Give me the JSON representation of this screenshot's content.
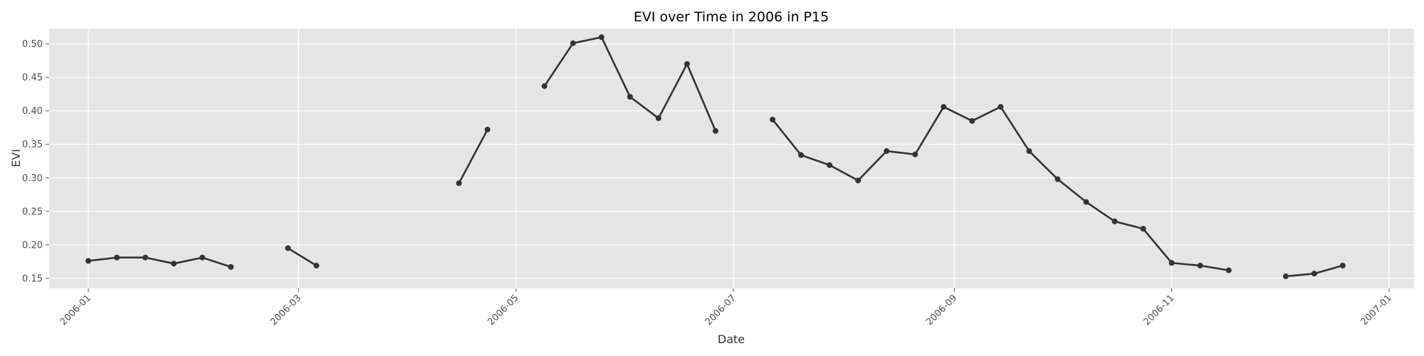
{
  "chart_data": {
    "type": "line",
    "title": "EVI over Time in 2006 in P15",
    "xlabel": "Date",
    "ylabel": "EVI",
    "x_range": [
      "2005-12-21",
      "2007-01-08"
    ],
    "ylim": [
      0.135,
      0.523
    ],
    "grid": true,
    "x_ticks": [
      {
        "date": "2006-01-01",
        "label": "2006-01"
      },
      {
        "date": "2006-03-01",
        "label": "2006-03"
      },
      {
        "date": "2006-05-01",
        "label": "2006-05"
      },
      {
        "date": "2006-07-01",
        "label": "2006-07"
      },
      {
        "date": "2006-09-01",
        "label": "2006-09"
      },
      {
        "date": "2006-11-01",
        "label": "2006-11"
      },
      {
        "date": "2007-01-01",
        "label": "2007-01"
      }
    ],
    "y_ticks": [
      {
        "value": 0.15,
        "label": "0.15"
      },
      {
        "value": 0.2,
        "label": "0.20"
      },
      {
        "value": 0.25,
        "label": "0.25"
      },
      {
        "value": 0.3,
        "label": "0.30"
      },
      {
        "value": 0.35,
        "label": "0.35"
      },
      {
        "value": 0.4,
        "label": "0.40"
      },
      {
        "value": 0.45,
        "label": "0.45"
      },
      {
        "value": 0.5,
        "label": "0.50"
      }
    ],
    "series": [
      {
        "name": "EVI",
        "color": "#333333",
        "segments": [
          [
            {
              "date": "2006-01-01",
              "value": 0.176
            },
            {
              "date": "2006-01-09",
              "value": 0.181
            },
            {
              "date": "2006-01-17",
              "value": 0.181
            },
            {
              "date": "2006-01-25",
              "value": 0.172
            },
            {
              "date": "2006-02-02",
              "value": 0.181
            },
            {
              "date": "2006-02-10",
              "value": 0.167
            }
          ],
          [
            {
              "date": "2006-02-26",
              "value": 0.195
            },
            {
              "date": "2006-03-06",
              "value": 0.169
            }
          ],
          [
            {
              "date": "2006-04-15",
              "value": 0.292
            },
            {
              "date": "2006-04-23",
              "value": 0.372
            }
          ],
          [
            {
              "date": "2006-05-09",
              "value": 0.437
            },
            {
              "date": "2006-05-17",
              "value": 0.501
            },
            {
              "date": "2006-05-25",
              "value": 0.51
            },
            {
              "date": "2006-06-02",
              "value": 0.421
            },
            {
              "date": "2006-06-10",
              "value": 0.389
            },
            {
              "date": "2006-06-18",
              "value": 0.47
            },
            {
              "date": "2006-06-26",
              "value": 0.37
            }
          ],
          [
            {
              "date": "2006-07-12",
              "value": 0.387
            },
            {
              "date": "2006-07-20",
              "value": 0.334
            },
            {
              "date": "2006-07-28",
              "value": 0.319
            },
            {
              "date": "2006-08-05",
              "value": 0.296
            },
            {
              "date": "2006-08-13",
              "value": 0.34
            },
            {
              "date": "2006-08-21",
              "value": 0.335
            },
            {
              "date": "2006-08-29",
              "value": 0.406
            },
            {
              "date": "2006-09-06",
              "value": 0.385
            },
            {
              "date": "2006-09-14",
              "value": 0.406
            },
            {
              "date": "2006-09-22",
              "value": 0.34
            },
            {
              "date": "2006-09-30",
              "value": 0.298
            },
            {
              "date": "2006-10-08",
              "value": 0.264
            },
            {
              "date": "2006-10-16",
              "value": 0.235
            },
            {
              "date": "2006-10-24",
              "value": 0.224
            },
            {
              "date": "2006-11-01",
              "value": 0.173
            },
            {
              "date": "2006-11-09",
              "value": 0.169
            },
            {
              "date": "2006-11-17",
              "value": 0.162
            }
          ],
          [
            {
              "date": "2006-12-03",
              "value": 0.153
            },
            {
              "date": "2006-12-11",
              "value": 0.157
            },
            {
              "date": "2006-12-19",
              "value": 0.169
            }
          ]
        ]
      }
    ]
  }
}
